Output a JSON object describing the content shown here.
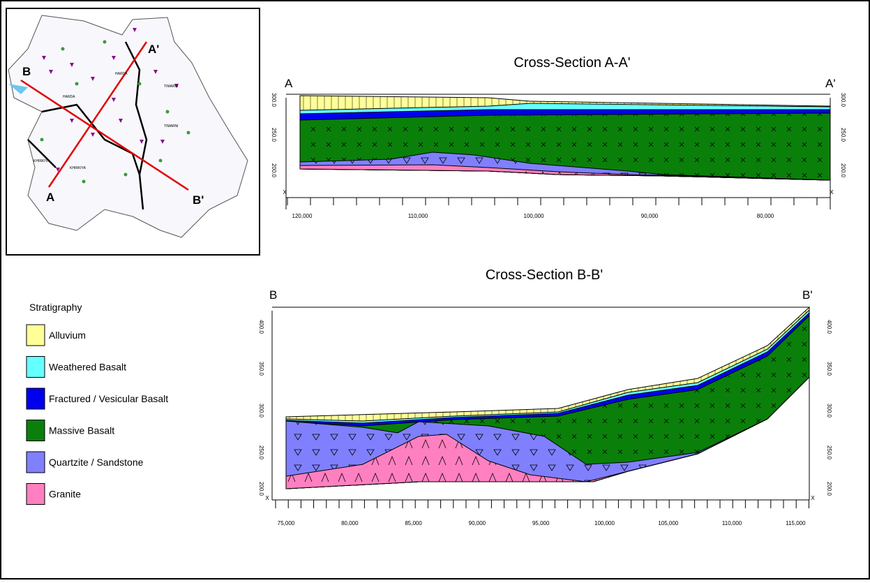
{
  "map": {
    "a": "A",
    "a_prime": "A'",
    "b": "B",
    "b_prime": "B'",
    "places": [
      "HARDA",
      "HARDA",
      "TIMARNI",
      "TIMARNI",
      "KHIRKIYA",
      "KHIRKIYA"
    ]
  },
  "sections": [
    {
      "title": "Cross-Section A-A'",
      "start": "A",
      "end": "A'",
      "corner": "X",
      "xticks": [
        "120,000",
        "110,000",
        "100,000",
        "90,000",
        "80,000"
      ],
      "yticks": [
        "300.0",
        "250.0",
        "200.0"
      ]
    },
    {
      "title": "Cross-Section B-B'",
      "start": "B",
      "end": "B'",
      "corner": "X",
      "xticks": [
        "75,000",
        "80,000",
        "85,000",
        "90,000",
        "95,000",
        "100,000",
        "105,000",
        "110,000",
        "115,000"
      ],
      "yticks": [
        "400.0",
        "350.0",
        "300.0",
        "250.0",
        "200.0"
      ]
    }
  ],
  "legend": {
    "title": "Stratigraphy",
    "items": [
      "Alluvium",
      "Weathered Basalt",
      "Fractured / Vesicular Basalt",
      "Massive Basalt",
      "Quartzite / Sandstone",
      "Granite"
    ]
  }
}
